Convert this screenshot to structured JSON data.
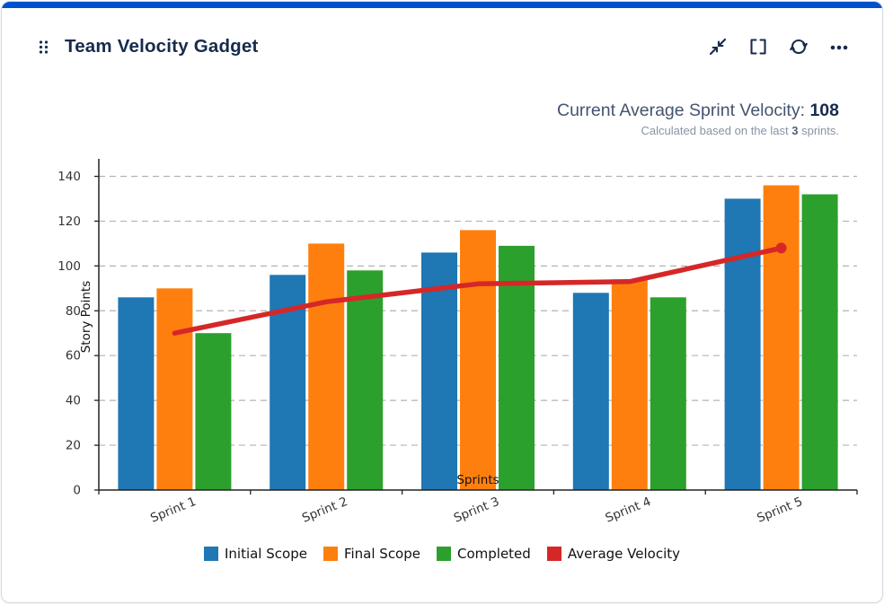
{
  "accent_color": "#0052cc",
  "header": {
    "title": "Team Velocity Gadget"
  },
  "stats": {
    "label": "Current Average Sprint Velocity:",
    "value": "108",
    "sub_prefix": "Calculated based on the last",
    "sub_count": "3",
    "sub_suffix": "sprints."
  },
  "chart_data": {
    "type": "bar",
    "title": "",
    "categories": [
      "Sprint 1",
      "Sprint 2",
      "Sprint 3",
      "Sprint 4",
      "Sprint 5"
    ],
    "series": [
      {
        "name": "Initial Scope",
        "color": "#1f77b4",
        "values": [
          86,
          96,
          106,
          88,
          130
        ]
      },
      {
        "name": "Final Scope",
        "color": "#ff7f0e",
        "values": [
          90,
          110,
          116,
          94,
          136
        ]
      },
      {
        "name": "Completed",
        "color": "#2ca02c",
        "values": [
          70,
          98,
          109,
          86,
          132
        ]
      }
    ],
    "line_series": {
      "name": "Average Velocity",
      "color": "#d62728",
      "values": [
        70,
        84,
        92,
        93,
        108
      ]
    },
    "xlabel": "Sprints",
    "ylabel": "Story Points",
    "ylim": [
      0,
      145
    ],
    "yticks": [
      0,
      20,
      40,
      60,
      80,
      100,
      120,
      140
    ],
    "grid": "dashed horizontal",
    "legend_position": "bottom"
  }
}
